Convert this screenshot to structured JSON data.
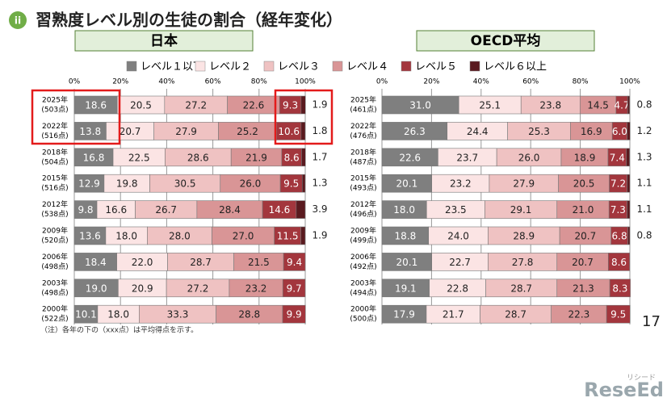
{
  "title": "習熟度レベル別の生徒の割合（経年変化）",
  "badge": "ii",
  "legend": {
    "names": [
      "レベル１以下",
      "レベル２",
      "レベル３",
      "レベル４",
      "レベル５",
      "レベル６以上"
    ],
    "colors": [
      "#7f7f7f",
      "#fbe4e4",
      "#efc2c2",
      "#d99596",
      "#a3363d",
      "#5a1a1f"
    ]
  },
  "note": "（注）各年の下の（xxx点）は平均得点を示す。",
  "page_number": "17",
  "logo": {
    "main": "ReseEd",
    "sub": "リシード"
  },
  "chart_data": [
    {
      "type": "bar",
      "stacked": true,
      "title": "日本",
      "categories": [
        "2025年",
        "2022年",
        "2018年",
        "2015年",
        "2012年",
        "2009年",
        "2006年",
        "2003年",
        "2000年"
      ],
      "category_notes": [
        "(503点)",
        "(516点)",
        "(504点)",
        "(516点)",
        "(538点)",
        "(520点)",
        "(498点)",
        "(498点)",
        "(522点)"
      ],
      "xlim": [
        0,
        100
      ],
      "xticks": [
        {
          "value": 0,
          "label": "0%"
        },
        {
          "value": 20,
          "label": "20%"
        },
        {
          "value": 40,
          "label": "40%"
        },
        {
          "value": 60,
          "label": "60%"
        },
        {
          "value": 80,
          "label": "80%"
        },
        {
          "value": 100,
          "label": "100%"
        }
      ],
      "grid": true,
      "series": [
        {
          "values": [
            18.6,
            13.8,
            16.8,
            12.9,
            9.8,
            13.6,
            18.4,
            19.0,
            10.1
          ],
          "value_labels": [
            "18.6",
            "13.8",
            "16.8",
            "12.9",
            "9.8",
            "13.6",
            "18.4",
            "19.0",
            "10.1"
          ]
        },
        {
          "values": [
            20.5,
            20.7,
            22.5,
            19.8,
            16.6,
            18.0,
            22.0,
            20.9,
            18.0
          ],
          "value_labels": [
            "20.5",
            "20.7",
            "22.5",
            "19.8",
            "16.6",
            "18.0",
            "22.0",
            "20.9",
            "18.0"
          ]
        },
        {
          "values": [
            27.2,
            27.9,
            28.6,
            30.5,
            26.7,
            28.0,
            28.7,
            27.2,
            33.3
          ],
          "value_labels": [
            "27.2",
            "27.9",
            "28.6",
            "30.5",
            "26.7",
            "28.0",
            "28.7",
            "27.2",
            "33.3"
          ]
        },
        {
          "values": [
            22.6,
            25.2,
            21.9,
            26.0,
            28.4,
            27.0,
            21.5,
            23.2,
            28.8
          ],
          "value_labels": [
            "22.6",
            "25.2",
            "21.9",
            "26.0",
            "28.4",
            "27.0",
            "21.5",
            "23.2",
            "28.8"
          ]
        },
        {
          "values": [
            9.3,
            10.6,
            8.6,
            9.5,
            14.6,
            11.5,
            9.4,
            9.7,
            9.9
          ],
          "value_labels": [
            "9.3",
            "10.6",
            "8.6",
            "9.5",
            "14.6",
            "11.5",
            "9.4",
            "9.7",
            "9.9"
          ]
        },
        {
          "values": [
            1.9,
            1.8,
            1.7,
            1.3,
            3.9,
            1.9,
            null,
            null,
            null
          ],
          "value_labels": [
            "1.9",
            "1.8",
            "1.7",
            "1.3",
            "3.9",
            "1.9",
            null,
            null,
            null
          ]
        }
      ]
    },
    {
      "type": "bar",
      "stacked": true,
      "title": "OECD平均",
      "categories": [
        "2025年",
        "2022年",
        "2018年",
        "2015年",
        "2012年",
        "2009年",
        "2006年",
        "2003年",
        "2000年"
      ],
      "category_notes": [
        "(461点)",
        "(476点)",
        "(487点)",
        "(493点)",
        "(496点)",
        "(499点)",
        "(492点)",
        "(494点)",
        "(500点)"
      ],
      "xlim": [
        0,
        100
      ],
      "xticks": [
        {
          "value": 0,
          "label": "0%"
        },
        {
          "value": 20,
          "label": "20%"
        },
        {
          "value": 40,
          "label": "40%"
        },
        {
          "value": 60,
          "label": "60%"
        },
        {
          "value": 80,
          "label": "80%"
        },
        {
          "value": 100,
          "label": "100%"
        }
      ],
      "grid": true,
      "series": [
        {
          "values": [
            31.0,
            26.3,
            22.6,
            20.1,
            18.0,
            18.8,
            20.1,
            19.1,
            17.9
          ],
          "value_labels": [
            "31.0",
            "26.3",
            "22.6",
            "20.1",
            "18.0",
            "18.8",
            "20.1",
            "19.1",
            "17.9"
          ]
        },
        {
          "values": [
            25.1,
            24.4,
            23.7,
            23.2,
            23.5,
            24.0,
            22.7,
            22.8,
            21.7
          ],
          "value_labels": [
            "25.1",
            "24.4",
            "23.7",
            "23.2",
            "23.5",
            "24.0",
            "22.7",
            "22.8",
            "21.7"
          ]
        },
        {
          "values": [
            23.8,
            25.3,
            26.0,
            27.9,
            29.1,
            28.9,
            27.8,
            28.7,
            28.7
          ],
          "value_labels": [
            "23.8",
            "25.3",
            "26.0",
            "27.9",
            "29.1",
            "28.9",
            "27.8",
            "28.7",
            "28.7"
          ]
        },
        {
          "values": [
            14.5,
            16.9,
            18.9,
            20.5,
            21.0,
            20.7,
            20.7,
            21.3,
            22.3
          ],
          "value_labels": [
            "14.5",
            "16.9",
            "18.9",
            "20.5",
            "21.0",
            "20.7",
            "20.7",
            "21.3",
            "22.3"
          ]
        },
        {
          "values": [
            4.7,
            6.0,
            7.4,
            7.2,
            7.3,
            6.8,
            8.6,
            8.3,
            9.5
          ],
          "value_labels": [
            "4.7",
            "6.0",
            "7.4",
            "7.2",
            "7.3",
            "6.8",
            "8.6",
            "8.3",
            "9.5"
          ]
        },
        {
          "values": [
            0.8,
            1.2,
            1.3,
            1.1,
            1.1,
            0.8,
            null,
            null,
            null
          ],
          "value_labels": [
            "0.8",
            "1.2",
            "1.3",
            "1.1",
            "1.1",
            "0.8",
            null,
            null,
            null
          ]
        }
      ]
    }
  ]
}
